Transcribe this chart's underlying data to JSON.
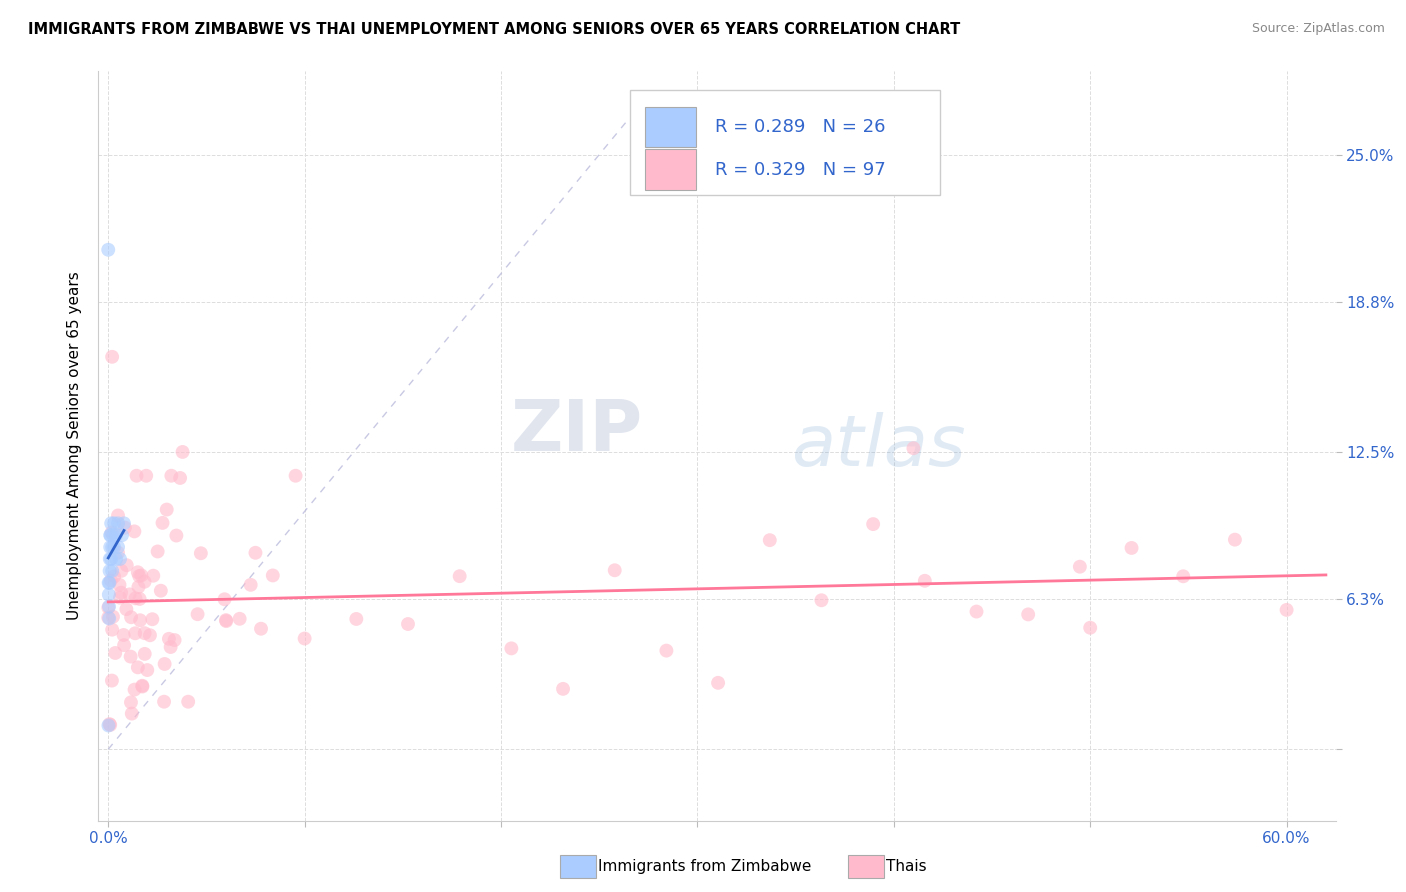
{
  "title": "IMMIGRANTS FROM ZIMBABWE VS THAI UNEMPLOYMENT AMONG SENIORS OVER 65 YEARS CORRELATION CHART",
  "source": "Source: ZipAtlas.com",
  "ylabel": "Unemployment Among Seniors over 65 years",
  "legend_label1": "Immigrants from Zimbabwe",
  "legend_label2": "Thais",
  "R1": 0.289,
  "N1": 26,
  "R2": 0.329,
  "N2": 97,
  "color_zim": "#aaccff",
  "color_thai": "#ffbbcc",
  "color_zim_line": "#3366cc",
  "color_thai_line": "#ff7799",
  "color_diagonal": "#bbbbdd",
  "watermark_zip": "ZIP",
  "watermark_atlas": "atlas",
  "xlim_min": -0.005,
  "xlim_max": 0.625,
  "ylim_min": -0.03,
  "ylim_max": 0.285,
  "x_ticks": [
    0.0,
    0.1,
    0.2,
    0.3,
    0.4,
    0.5,
    0.6
  ],
  "y_ticks": [
    0.0,
    0.063,
    0.125,
    0.188,
    0.25
  ],
  "y_tick_labels": [
    "",
    "6.3%",
    "12.5%",
    "18.8%",
    "25.0%"
  ],
  "grid_color": "#dddddd",
  "marker_size": 100,
  "marker_alpha": 0.6
}
